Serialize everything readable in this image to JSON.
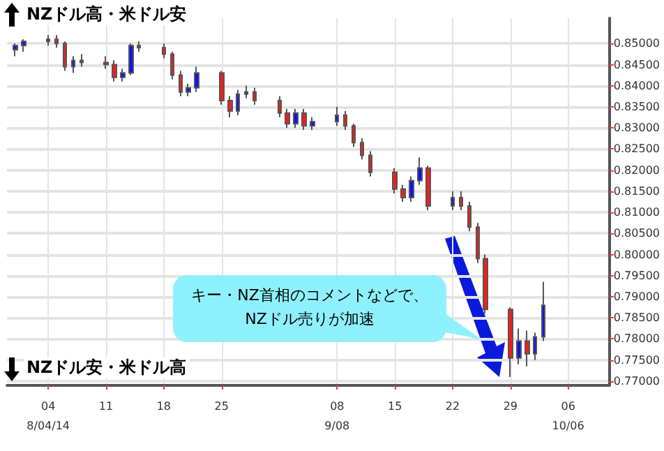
{
  "chart_data": {
    "type": "candlestick",
    "annotations": [
      "NZドル高・米ドル安",
      "NZドル安・米ドル高",
      "キー・NZ首相のコメントなどで、\nNZドル売りが加速"
    ],
    "x": [
      "--07-31",
      "--08-01",
      "--08-04",
      "--08-05",
      "--08-06",
      "--08-07",
      "--08-08",
      "--08-11",
      "--08-12",
      "--08-13",
      "--08-14",
      "--08-15",
      "--08-18",
      "--08-19",
      "--08-20",
      "--08-21",
      "--08-22",
      "--08-25",
      "--08-26",
      "--08-27",
      "--08-28",
      "--08-29",
      "--09-01",
      "--09-02",
      "--09-03",
      "--09-04",
      "--09-05",
      "--09-08",
      "--09-09",
      "--09-10",
      "--09-11",
      "--09-12",
      "--09-15",
      "--09-16",
      "--09-17",
      "--09-18",
      "--09-19",
      "--09-22",
      "--09-23",
      "--09-24",
      "--09-25",
      "--09-26",
      "--09-29",
      "--09-30",
      "--10-01",
      "--10-02",
      "--10-03"
    ],
    "ohlc": [
      [
        0.8485,
        0.85,
        0.847,
        0.8495
      ],
      [
        0.8495,
        0.851,
        0.848,
        0.8505
      ],
      [
        0.8505,
        0.852,
        0.8495,
        0.851
      ],
      [
        0.851,
        0.852,
        0.849,
        0.85
      ],
      [
        0.85,
        0.8505,
        0.8435,
        0.8445
      ],
      [
        0.8445,
        0.847,
        0.843,
        0.846
      ],
      [
        0.846,
        0.8475,
        0.8445,
        0.8455
      ],
      [
        0.8455,
        0.847,
        0.844,
        0.845
      ],
      [
        0.845,
        0.846,
        0.841,
        0.842
      ],
      [
        0.842,
        0.844,
        0.841,
        0.843
      ],
      [
        0.843,
        0.85,
        0.8425,
        0.8495
      ],
      [
        0.8495,
        0.8505,
        0.848,
        0.849
      ],
      [
        0.849,
        0.85,
        0.8465,
        0.8475
      ],
      [
        0.8475,
        0.848,
        0.8415,
        0.8425
      ],
      [
        0.8425,
        0.8435,
        0.8375,
        0.8385
      ],
      [
        0.8385,
        0.8405,
        0.8375,
        0.8395
      ],
      [
        0.8395,
        0.8445,
        0.8385,
        0.843
      ],
      [
        0.843,
        0.8435,
        0.8355,
        0.8365
      ],
      [
        0.8365,
        0.8375,
        0.8325,
        0.834
      ],
      [
        0.834,
        0.839,
        0.833,
        0.838
      ],
      [
        0.838,
        0.84,
        0.837,
        0.8385
      ],
      [
        0.8385,
        0.8395,
        0.8355,
        0.8365
      ],
      [
        0.8365,
        0.8375,
        0.8325,
        0.8335
      ],
      [
        0.8335,
        0.8345,
        0.83,
        0.831
      ],
      [
        0.831,
        0.8345,
        0.83,
        0.8335
      ],
      [
        0.8335,
        0.8345,
        0.8295,
        0.8305
      ],
      [
        0.8305,
        0.8325,
        0.8295,
        0.8315
      ],
      [
        0.8315,
        0.835,
        0.8305,
        0.833
      ],
      [
        0.833,
        0.834,
        0.8295,
        0.8305
      ],
      [
        0.8305,
        0.831,
        0.8255,
        0.8265
      ],
      [
        0.8265,
        0.8275,
        0.8225,
        0.8235
      ],
      [
        0.8235,
        0.8245,
        0.8185,
        0.8195
      ],
      [
        0.8195,
        0.8205,
        0.8145,
        0.8155
      ],
      [
        0.8155,
        0.8165,
        0.8125,
        0.8135
      ],
      [
        0.8135,
        0.8185,
        0.8125,
        0.8175
      ],
      [
        0.8175,
        0.823,
        0.8165,
        0.8205
      ],
      [
        0.8205,
        0.821,
        0.8105,
        0.8115
      ],
      [
        0.8115,
        0.815,
        0.8105,
        0.8135
      ],
      [
        0.8135,
        0.815,
        0.8105,
        0.8115
      ],
      [
        0.8115,
        0.8125,
        0.8055,
        0.8065
      ],
      [
        0.8065,
        0.8075,
        0.798,
        0.799
      ],
      [
        0.799,
        0.8,
        0.786,
        0.787
      ],
      [
        0.787,
        0.7875,
        0.771,
        0.7755
      ],
      [
        0.7755,
        0.7825,
        0.774,
        0.7795
      ],
      [
        0.7795,
        0.782,
        0.7735,
        0.7765
      ],
      [
        0.7765,
        0.7815,
        0.775,
        0.7805
      ],
      [
        0.7805,
        0.7935,
        0.7795,
        0.788
      ]
    ],
    "xlim": [
      "--07-30",
      "--10-11"
    ],
    "xticks": [
      {
        "value": "--08-04",
        "label": "04\n8/04/14"
      },
      {
        "value": "--08-11",
        "label": "11"
      },
      {
        "value": "--08-18",
        "label": "18"
      },
      {
        "value": "--08-25",
        "label": "25"
      },
      {
        "value": "--09-08",
        "label": "08\n9/08"
      },
      {
        "value": "--09-15",
        "label": "15"
      },
      {
        "value": "--09-22",
        "label": "22"
      },
      {
        "value": "--09-29",
        "label": "29"
      },
      {
        "value": "--10-06",
        "label": "06\n10/06"
      }
    ],
    "ylim": [
      0.769,
      0.856
    ],
    "yticks": [
      {
        "value": 0.77,
        "label": "0.77000"
      },
      {
        "value": 0.775,
        "label": "0.77500"
      },
      {
        "value": 0.78,
        "label": "0.78000"
      },
      {
        "value": 0.785,
        "label": "0.78500"
      },
      {
        "value": 0.79,
        "label": "0.79000"
      },
      {
        "value": 0.795,
        "label": "0.79500"
      },
      {
        "value": 0.8,
        "label": "0.80000"
      },
      {
        "value": 0.805,
        "label": "0.80500"
      },
      {
        "value": 0.81,
        "label": "0.81000"
      },
      {
        "value": 0.815,
        "label": "0.81500"
      },
      {
        "value": 0.82,
        "label": "0.82000"
      },
      {
        "value": 0.825,
        "label": "0.82500"
      },
      {
        "value": 0.83,
        "label": "0.83000"
      },
      {
        "value": 0.835,
        "label": "0.83500"
      },
      {
        "value": 0.84,
        "label": "0.84000"
      },
      {
        "value": 0.845,
        "label": "0.84500"
      },
      {
        "value": 0.85,
        "label": "0.85000"
      }
    ],
    "grid": true
  }
}
